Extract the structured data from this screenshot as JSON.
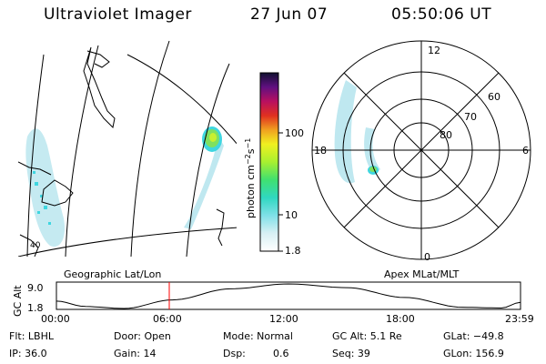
{
  "header": {
    "instrument": "Ultraviolet Imager",
    "date": "27 Jun 07",
    "time": "05:50:06 UT"
  },
  "colorbar": {
    "unit_label": "photon cm",
    "exp1": "−2",
    "unit_mid": "s",
    "exp2": "−1",
    "ticks": [
      "100",
      "10",
      "1.8"
    ]
  },
  "map": {
    "label": "Geographic Lat/Lon",
    "corner_lat": "40"
  },
  "polar": {
    "label": "Apex MLat/MLT",
    "mlt_labels": {
      "top": "12",
      "left": "18",
      "right": "6",
      "bottom": "0"
    },
    "mlat_labels": [
      "60",
      "70",
      "80"
    ]
  },
  "altitude_plot": {
    "ylabel": "GC Alt",
    "ymax": "9.0",
    "ymin": "1.8",
    "xticks": [
      "00:00",
      "06:00",
      "12:00",
      "18:00",
      "23:59"
    ],
    "current_time_hours": 5.835,
    "colors": {
      "marker": "#ff0000"
    }
  },
  "info": {
    "row1": {
      "flt": "Flt: LBHL",
      "door": "Door: Open",
      "mode": "Mode: Normal",
      "gcalt": "GC Alt: 5.1 Re",
      "glat": "GLat: −49.8"
    },
    "row2": {
      "ip": "IP: 36.0",
      "gain": "Gain: 14",
      "dsp_label": "Dsp:",
      "dsp_value": "0.6",
      "seq": "Seq: 39",
      "glon": "GLon: 156.9"
    }
  }
}
